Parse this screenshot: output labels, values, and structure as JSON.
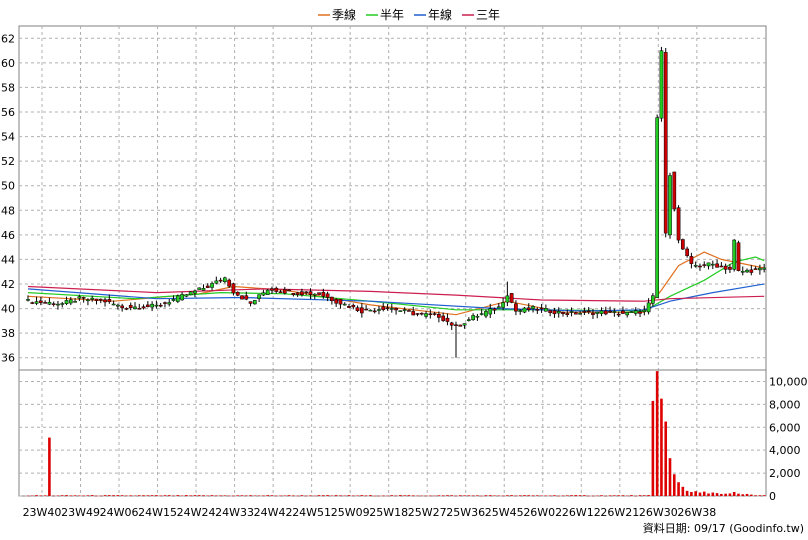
{
  "chart_data": {
    "type": "candlestick",
    "legend": [
      {
        "name": "季線",
        "color": "#e07020"
      },
      {
        "name": "半年",
        "color": "#22cc22"
      },
      {
        "name": "年線",
        "color": "#1f5fd0"
      },
      {
        "name": "三年",
        "color": "#cc1f4f"
      }
    ],
    "legend_position": "top-center",
    "grid": true,
    "price_axis": {
      "ylim": [
        35,
        63
      ],
      "ticks": [
        36,
        38,
        40,
        42,
        44,
        46,
        48,
        50,
        52,
        54,
        56,
        58,
        60,
        62
      ],
      "side": "left"
    },
    "volume_axis": {
      "ylim": [
        0,
        11000
      ],
      "ticks": [
        0,
        2000,
        4000,
        6000,
        8000,
        10000
      ],
      "tick_labels": [
        "0",
        "2,000",
        "4,000",
        "6,000",
        "8,000",
        "10,000"
      ],
      "side": "right"
    },
    "x_tick_labels": [
      "23W40",
      "23W49",
      "24W06",
      "24W15",
      "24W24",
      "24W33",
      "24W42",
      "24W51",
      "25W09",
      "25W18",
      "25W27",
      "25W36",
      "25W45",
      "26W02",
      "26W12",
      "26W21",
      "26W30",
      "26W38"
    ],
    "up_color": "#22cc22",
    "down_color": "#cc0000",
    "bars_per_tick": 9,
    "price_close_anchors": [
      [
        0,
        40.6
      ],
      [
        8,
        40.4
      ],
      [
        12,
        40.8
      ],
      [
        18,
        40.6
      ],
      [
        22,
        40.1
      ],
      [
        30,
        40.2
      ],
      [
        36,
        41.0
      ],
      [
        42,
        41.8
      ],
      [
        46,
        42.5
      ],
      [
        48,
        41.4
      ],
      [
        52,
        40.4
      ],
      [
        56,
        41.6
      ],
      [
        62,
        41.3
      ],
      [
        68,
        41.2
      ],
      [
        72,
        40.6
      ],
      [
        78,
        39.8
      ],
      [
        84,
        40.1
      ],
      [
        90,
        39.6
      ],
      [
        96,
        39.4
      ],
      [
        100,
        38.5
      ],
      [
        104,
        39.3
      ],
      [
        110,
        40.1
      ],
      [
        112,
        41.2
      ],
      [
        114,
        39.8
      ],
      [
        118,
        40.0
      ],
      [
        126,
        39.6
      ],
      [
        134,
        39.7
      ],
      [
        140,
        39.6
      ],
      [
        144,
        39.8
      ],
      [
        146,
        40.9
      ],
      [
        147,
        55.5
      ],
      [
        148,
        61.0
      ],
      [
        149,
        46.0
      ],
      [
        150,
        51.0
      ],
      [
        152,
        45.5
      ],
      [
        155,
        43.5
      ],
      [
        160,
        43.6
      ],
      [
        164,
        43.2
      ],
      [
        165,
        45.5
      ],
      [
        166,
        43.0
      ],
      [
        169,
        43.1
      ],
      [
        172,
        43.2
      ]
    ],
    "price_extremes": [
      {
        "bar": 100,
        "low": 36.0
      },
      {
        "bar": 147,
        "high": 55.8
      },
      {
        "bar": 148,
        "high": 61.3
      },
      {
        "bar": 112,
        "high": 42.2
      }
    ],
    "volume_spikes": [
      {
        "bar": 5,
        "value": 5100
      },
      {
        "bar": 146,
        "value": 8300
      },
      {
        "bar": 147,
        "value": 10900
      },
      {
        "bar": 148,
        "value": 8500
      },
      {
        "bar": 149,
        "value": 6500
      },
      {
        "bar": 150,
        "value": 3300
      },
      {
        "bar": 151,
        "value": 1900
      },
      {
        "bar": 152,
        "value": 1200
      },
      {
        "bar": 153,
        "value": 800
      },
      {
        "bar": 154,
        "value": 450
      },
      {
        "bar": 155,
        "value": 350
      },
      {
        "bar": 156,
        "value": 420
      },
      {
        "bar": 157,
        "value": 300
      },
      {
        "bar": 158,
        "value": 380
      },
      {
        "bar": 159,
        "value": 220
      },
      {
        "bar": 160,
        "value": 300
      },
      {
        "bar": 161,
        "value": 250
      },
      {
        "bar": 162,
        "value": 180
      },
      {
        "bar": 163,
        "value": 200
      },
      {
        "bar": 164,
        "value": 220
      },
      {
        "bar": 165,
        "value": 350
      },
      {
        "bar": 166,
        "value": 200
      },
      {
        "bar": 167,
        "value": 150
      },
      {
        "bar": 168,
        "value": 180
      },
      {
        "bar": 169,
        "value": 120
      }
    ],
    "ma_series": [
      {
        "name": "季線",
        "points": [
          [
            0,
            41.0
          ],
          [
            20,
            40.6
          ],
          [
            40,
            41.2
          ],
          [
            48,
            41.8
          ],
          [
            60,
            41.5
          ],
          [
            80,
            40.3
          ],
          [
            100,
            39.5
          ],
          [
            112,
            40.6
          ],
          [
            125,
            39.7
          ],
          [
            144,
            39.7
          ],
          [
            148,
            41.5
          ],
          [
            152,
            43.5
          ],
          [
            158,
            44.6
          ],
          [
            162,
            44.0
          ],
          [
            172,
            43.3
          ]
        ]
      },
      {
        "name": "半年",
        "points": [
          [
            0,
            41.3
          ],
          [
            25,
            40.8
          ],
          [
            45,
            41.3
          ],
          [
            60,
            41.2
          ],
          [
            80,
            40.6
          ],
          [
            100,
            39.9
          ],
          [
            120,
            39.9
          ],
          [
            144,
            39.8
          ],
          [
            150,
            41.0
          ],
          [
            158,
            42.3
          ],
          [
            165,
            43.8
          ],
          [
            170,
            44.2
          ],
          [
            172,
            43.9
          ]
        ]
      },
      {
        "name": "年線",
        "points": [
          [
            0,
            41.6
          ],
          [
            30,
            40.8
          ],
          [
            50,
            40.9
          ],
          [
            80,
            40.6
          ],
          [
            110,
            40.0
          ],
          [
            130,
            39.8
          ],
          [
            144,
            39.9
          ],
          [
            150,
            40.6
          ],
          [
            160,
            41.3
          ],
          [
            172,
            42.0
          ]
        ]
      },
      {
        "name": "三年",
        "points": [
          [
            0,
            41.8
          ],
          [
            30,
            41.3
          ],
          [
            55,
            41.6
          ],
          [
            80,
            41.4
          ],
          [
            100,
            41.1
          ],
          [
            120,
            40.7
          ],
          [
            144,
            40.6
          ],
          [
            150,
            40.8
          ],
          [
            172,
            41.0
          ]
        ]
      }
    ]
  },
  "footer": {
    "text": "資料日期: 09/17  (Goodinfo.tw)"
  }
}
